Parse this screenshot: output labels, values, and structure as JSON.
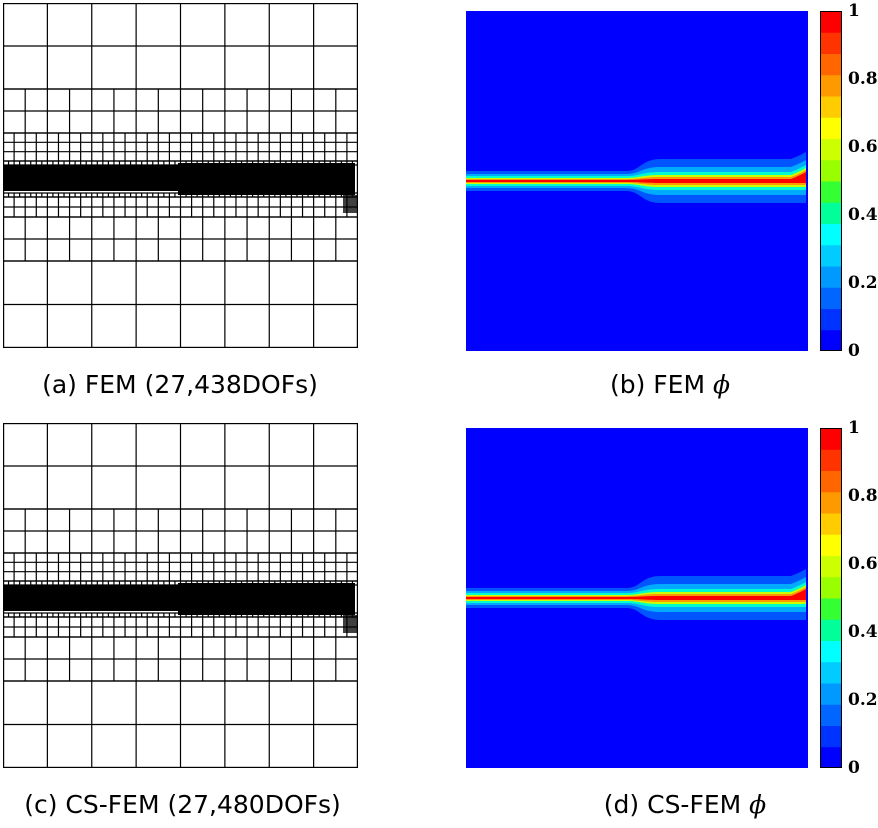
{
  "figure": {
    "panels": [
      {
        "id": "a",
        "caption_prefix": "(a) ",
        "caption_text": "FEM (27,438DOFs)",
        "kind": "mesh"
      },
      {
        "id": "b",
        "caption_prefix": "(b) ",
        "caption_text": "FEM ",
        "caption_symbol": "ϕ",
        "kind": "field"
      },
      {
        "id": "c",
        "caption_prefix": "(c) ",
        "caption_text": "CS-FEM (27,480DOFs)",
        "kind": "mesh"
      },
      {
        "id": "d",
        "caption_prefix": "(d) ",
        "caption_text": "CS-FEM ",
        "caption_symbol": "ϕ",
        "kind": "field"
      }
    ],
    "colorbar": {
      "ticks": [
        "1",
        "0.8",
        "0.6",
        "0.4",
        "0.2",
        "0"
      ],
      "colors": [
        "#0000ff",
        "#0033ff",
        "#0066ff",
        "#0099ff",
        "#00ccff",
        "#00ffff",
        "#00ff99",
        "#33ff33",
        "#99ff00",
        "#ccff00",
        "#ffff00",
        "#ffcc00",
        "#ff9900",
        "#ff6600",
        "#ff3300",
        "#ff0000"
      ]
    },
    "field_colors": {
      "background": "#0000ff"
    }
  }
}
